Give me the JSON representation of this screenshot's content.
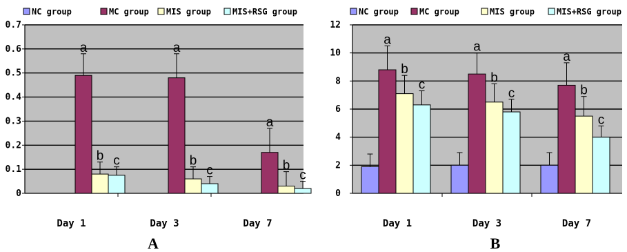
{
  "panel_labels": [
    "A",
    "B"
  ],
  "chart_data": [
    {
      "type": "bar",
      "panel": "A",
      "categories": [
        "Day 1",
        "Day 3",
        "Day 7"
      ],
      "legend_position": "top",
      "grid": true,
      "ylim": [
        0,
        0.7
      ],
      "yticks": [
        "0",
        "0.1",
        "0.2",
        "0.3",
        "0.4",
        "0.5",
        "0.6",
        "0.7"
      ],
      "series": [
        {
          "name": "NC group",
          "color": "#9999ff",
          "values": [
            0,
            0,
            0
          ],
          "errors": [
            0,
            0,
            0
          ],
          "labels": [
            "",
            "",
            ""
          ]
        },
        {
          "name": "MC group",
          "color": "#993366",
          "values": [
            0.49,
            0.48,
            0.17
          ],
          "errors": [
            0.09,
            0.1,
            0.1
          ],
          "labels": [
            "a",
            "a",
            "a"
          ]
        },
        {
          "name": "MIS group",
          "color": "#ffffcc",
          "values": [
            0.08,
            0.06,
            0.03
          ],
          "errors": [
            0.05,
            0.05,
            0.06
          ],
          "labels": [
            "b",
            "b",
            "b"
          ]
        },
        {
          "name": "MIS+RSG group",
          "color": "#ccffff",
          "values": [
            0.075,
            0.04,
            0.02
          ],
          "errors": [
            0.035,
            0.03,
            0.03
          ],
          "labels": [
            "c",
            "c",
            "c"
          ]
        }
      ]
    },
    {
      "type": "bar",
      "panel": "B",
      "categories": [
        "Day 1",
        "Day 3",
        "Day 7"
      ],
      "legend_position": "top",
      "grid": true,
      "ylim": [
        0,
        12
      ],
      "yticks": [
        "0",
        "2",
        "4",
        "6",
        "8",
        "10",
        "12"
      ],
      "series": [
        {
          "name": "NC group",
          "color": "#9999ff",
          "values": [
            1.9,
            2.0,
            2.0
          ],
          "errors": [
            0.9,
            0.9,
            0.9
          ],
          "labels": [
            "",
            "",
            ""
          ]
        },
        {
          "name": "MC group",
          "color": "#993366",
          "values": [
            8.8,
            8.5,
            7.7
          ],
          "errors": [
            1.7,
            1.5,
            1.6
          ],
          "labels": [
            "a",
            "a",
            "a"
          ]
        },
        {
          "name": "MIS group",
          "color": "#ffffcc",
          "values": [
            7.1,
            6.5,
            5.5
          ],
          "errors": [
            1.3,
            1.3,
            1.4
          ],
          "labels": [
            "b",
            "b",
            "b"
          ]
        },
        {
          "name": "MIS+RSG group",
          "color": "#ccffff",
          "values": [
            6.3,
            5.8,
            4.0
          ],
          "errors": [
            1.0,
            0.9,
            0.8
          ],
          "labels": [
            "c",
            "c",
            "c"
          ]
        }
      ]
    }
  ]
}
